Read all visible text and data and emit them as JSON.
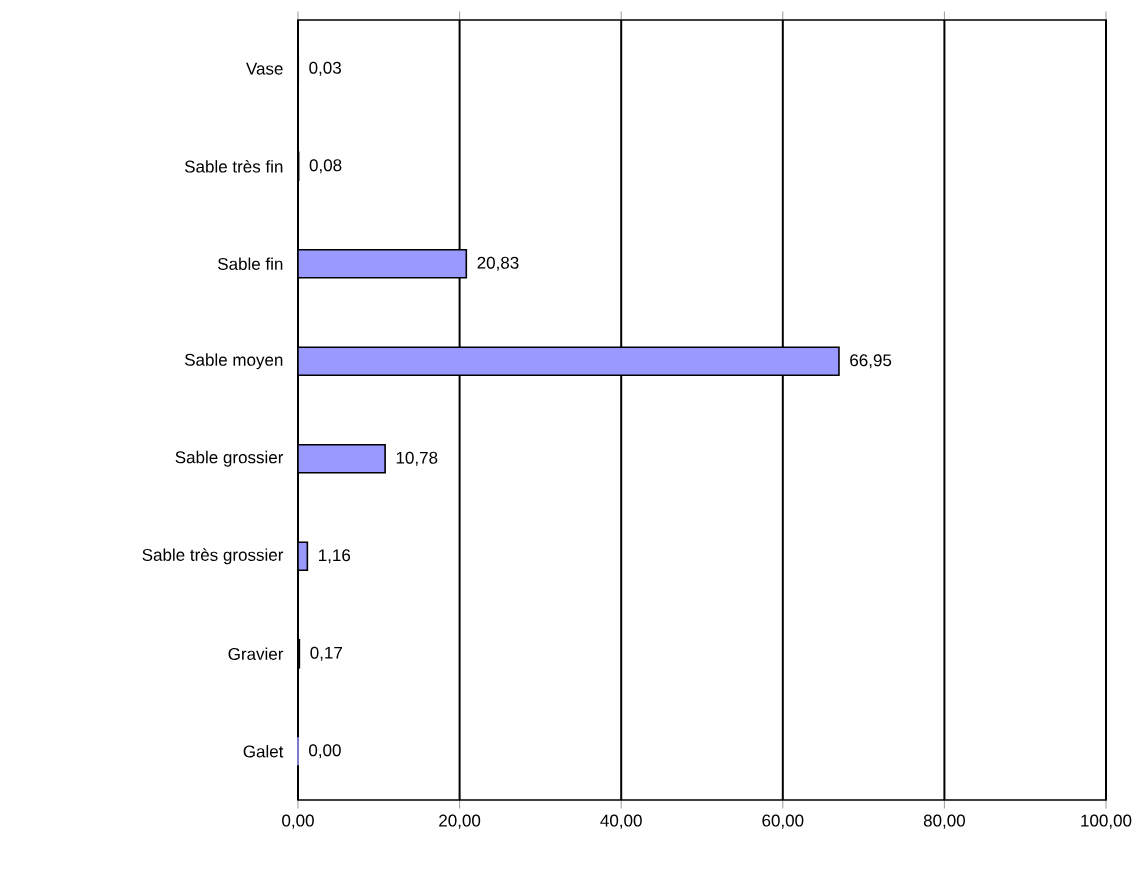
{
  "chart_data": {
    "type": "bar",
    "orientation": "horizontal",
    "categories": [
      "Vase",
      "Sable très fin",
      "Sable fin",
      "Sable moyen",
      "Sable grossier",
      "Sable très grossier",
      "Gravier",
      "Galet"
    ],
    "values": [
      0.03,
      0.08,
      20.83,
      66.95,
      10.78,
      1.16,
      0.17,
      0.0
    ],
    "value_labels": [
      "0,03",
      "0,08",
      "20,83",
      "66,95",
      "10,78",
      "1,16",
      "0,17",
      "0,00"
    ],
    "color": "#9999ff",
    "xlim": [
      0,
      100
    ],
    "xticks": [
      {
        "value": 0,
        "label": "0,00"
      },
      {
        "value": 20,
        "label": "20,00"
      },
      {
        "value": 40,
        "label": "40,00"
      },
      {
        "value": 60,
        "label": "60,00"
      },
      {
        "value": 80,
        "label": "80,00"
      },
      {
        "value": 100,
        "label": "100,00"
      }
    ],
    "grid": "x"
  }
}
